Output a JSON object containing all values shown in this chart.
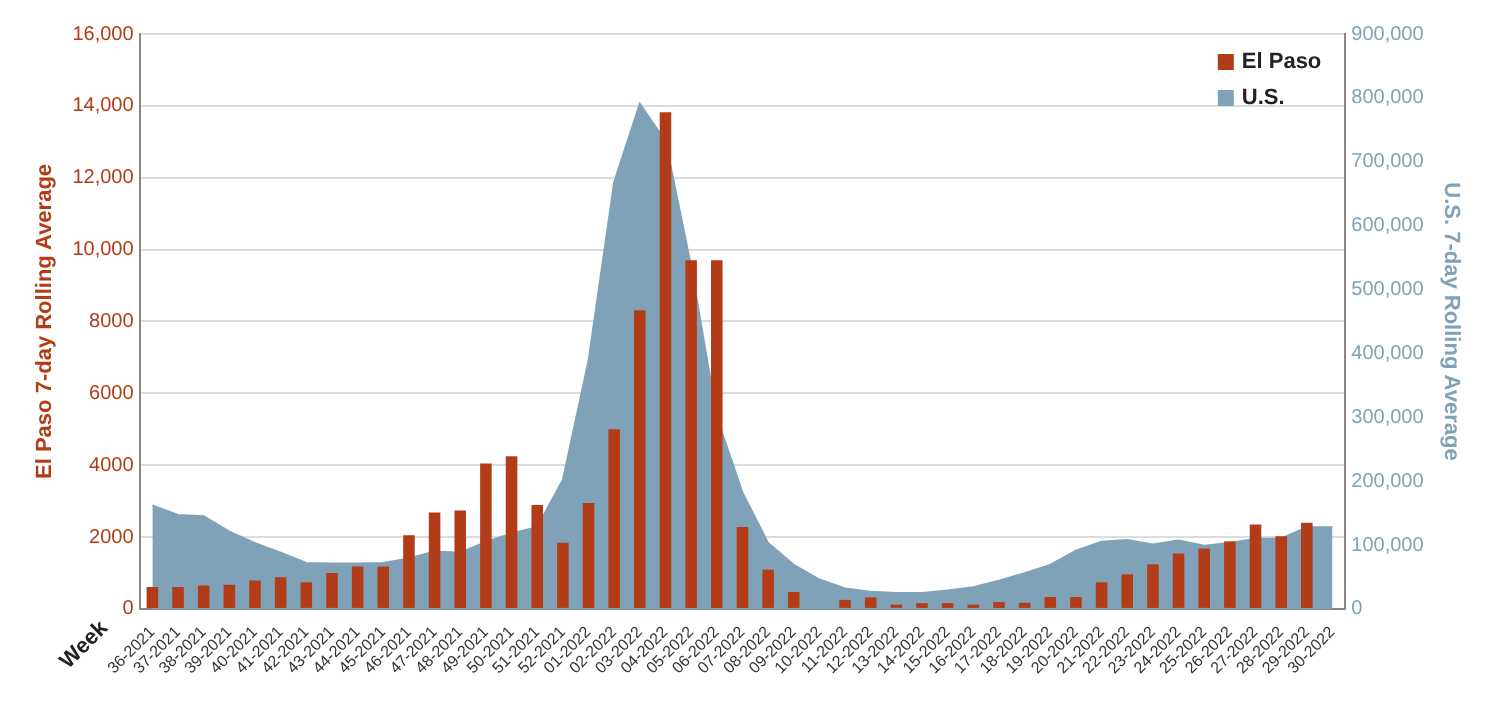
{
  "chart_data": {
    "type": "bar",
    "xlabel": "Week",
    "ylabel": "El Paso 7-day Rolling Average",
    "y2label": "U.S. 7-day Rolling Average",
    "categories": [
      "36-2021",
      "37-2021",
      "38-2021",
      "39-2021",
      "40-2021",
      "41-2021",
      "42-2021",
      "43-2021",
      "44-2021",
      "45-2021",
      "46-2021",
      "47-2021",
      "48-2021",
      "49-2021",
      "50-2021",
      "51-2021",
      "52-2021",
      "01-2022",
      "02-2022",
      "03-2022",
      "04-2022",
      "05-2022",
      "06-2022",
      "07-2022",
      "08-2022",
      "09-2022",
      "10-2022",
      "11-2022",
      "12-2022",
      "13-2022",
      "14-2022",
      "15-2022",
      "16-2022",
      "17-2022",
      "18-2022",
      "19-2022",
      "20-2022",
      "21-2022",
      "22-2022",
      "23-2022",
      "24-2022",
      "25-2022",
      "26-2022",
      "27-2022",
      "28-2022",
      "29-2022",
      "30-2022"
    ],
    "series": [
      {
        "name": "El Paso",
        "color": "#b23c17",
        "values": [
          610,
          610,
          650,
          670,
          790,
          880,
          740,
          1000,
          1180,
          1180,
          2050,
          2680,
          2740,
          4050,
          4250,
          2890,
          1840,
          2950,
          5000,
          8310,
          13820,
          9700,
          9700,
          2280,
          1090,
          470,
          0,
          250,
          320,
          120,
          160,
          160,
          120,
          190,
          170,
          330,
          330,
          740,
          960,
          1240,
          1540,
          1680,
          1880,
          2350,
          2020,
          2400,
          null
        ]
      },
      {
        "name": "U.S.",
        "type": "area",
        "axis": "y2",
        "color": "#7fa2b8",
        "values": [
          162000,
          147000,
          145000,
          121000,
          103000,
          88000,
          72000,
          71000,
          71000,
          72000,
          79000,
          90000,
          88000,
          105000,
          118000,
          128000,
          202000,
          388000,
          668000,
          791000,
          732000,
          536000,
          300000,
          182000,
          103000,
          69000,
          46000,
          32000,
          27000,
          25000,
          25000,
          29000,
          34000,
          44000,
          56000,
          69000,
          91000,
          105000,
          108000,
          101000,
          107000,
          99000,
          103000,
          110000,
          110000,
          128000,
          128000
        ]
      }
    ],
    "ylim": [
      0,
      16000
    ],
    "yticks": [
      0,
      2000,
      4000,
      6000,
      8000,
      {
        "value": 10000,
        "label": "10,000"
      },
      {
        "value": 12000,
        "label": "12,000"
      },
      {
        "value": 14000,
        "label": "14,000"
      },
      {
        "value": 16000,
        "label": "16,000"
      }
    ],
    "y2lim": [
      0,
      900000
    ],
    "y2ticks": [
      0,
      {
        "value": 100000,
        "label": "100,000"
      },
      {
        "value": 200000,
        "label": "200,000"
      },
      {
        "value": 300000,
        "label": "300,000"
      },
      {
        "value": 400000,
        "label": "400,000"
      },
      {
        "value": 500000,
        "label": "500,000"
      },
      {
        "value": 600000,
        "label": "600,000"
      },
      {
        "value": 700000,
        "label": "700,000"
      },
      {
        "value": 800000,
        "label": "800,000"
      },
      {
        "value": 900000,
        "label": "900,000"
      }
    ],
    "grid": "y",
    "legend": "top right"
  }
}
